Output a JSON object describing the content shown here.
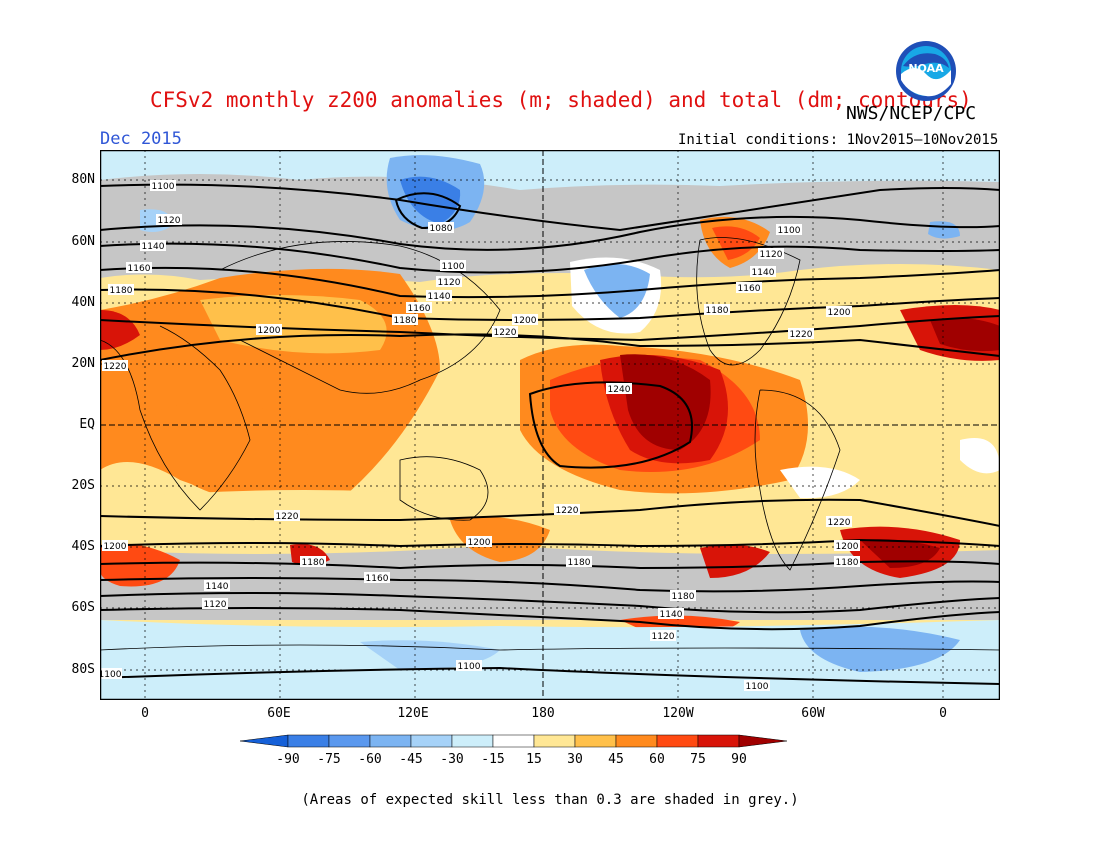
{
  "header": {
    "title": "CFSv2 monthly z200 anomalies (m; shaded) and total (dm; contours)",
    "agency": "NWS/NCEP/CPC",
    "month": "Dec 2015",
    "initial_conditions": "Initial conditions: 1Nov2015–10Nov2015",
    "logo_text": "NOAA"
  },
  "axes": {
    "y_labels": [
      "80N",
      "60N",
      "40N",
      "20N",
      "EQ",
      "20S",
      "40S",
      "60S",
      "80S"
    ],
    "x_labels": [
      "0",
      "60E",
      "120E",
      "180",
      "120W",
      "60W",
      "0"
    ]
  },
  "colorbar": {
    "tick_labels": [
      "-90",
      "-75",
      "-60",
      "-45",
      "-30",
      "-15",
      "15",
      "30",
      "45",
      "60",
      "75",
      "90"
    ],
    "colors": [
      "#1560d8",
      "#3a7fe6",
      "#5a98ee",
      "#7cb4f2",
      "#a6d2f8",
      "#cdeefa",
      "#ffffff",
      "#ffe795",
      "#ffc04a",
      "#ff8a1e",
      "#ff4a12",
      "#d81408",
      "#a00000"
    ]
  },
  "contour_labels": [
    "1100",
    "1120",
    "1140",
    "1160",
    "1180",
    "1200",
    "1220",
    "1240",
    "1080"
  ],
  "legend_note": "(Areas of expected skill less than 0.3 are shaded in grey.)"
}
